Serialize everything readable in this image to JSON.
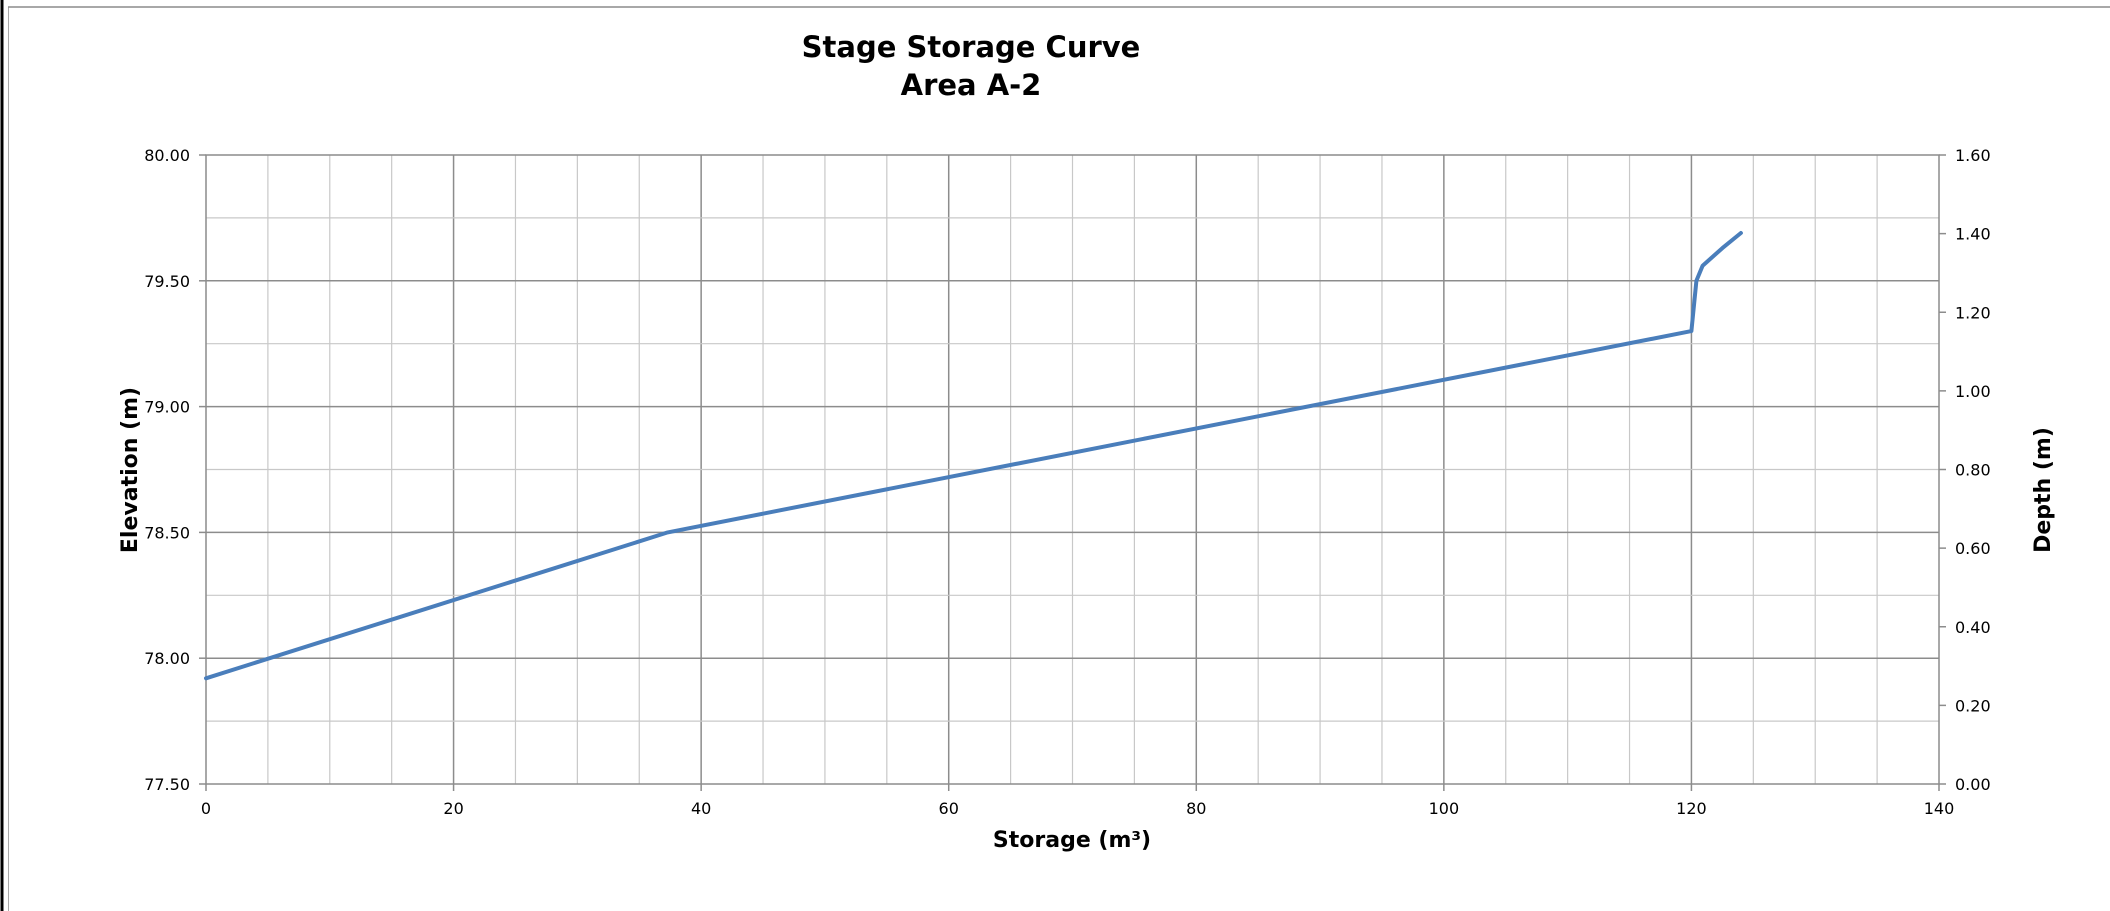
{
  "chart_data": {
    "type": "line",
    "title": "Stage Storage Curve",
    "subtitle": "Area A-2",
    "xlabel": "Storage (m³)",
    "ylabel": "Elevation (m)",
    "y2label": "Depth (m)",
    "xlim": [
      0,
      140
    ],
    "ylim": [
      77.5,
      80.0
    ],
    "y2lim": [
      0.0,
      1.6
    ],
    "x_ticks": [
      "0",
      "20",
      "40",
      "60",
      "80",
      "100",
      "120",
      "140"
    ],
    "y_ticks": [
      "77.50",
      "78.00",
      "78.50",
      "79.00",
      "79.50",
      "80.00"
    ],
    "y2_ticks": [
      "0.00",
      "0.20",
      "0.40",
      "0.60",
      "0.80",
      "1.00",
      "1.20",
      "1.40",
      "1.60"
    ],
    "grid": true,
    "series": [
      {
        "color": "#4a7ebb",
        "points": [
          [
            0,
            77.92
          ],
          [
            37.3,
            78.5
          ],
          [
            120.0,
            79.3
          ],
          [
            120.4,
            79.5
          ],
          [
            120.9,
            79.56
          ],
          [
            122.5,
            79.63
          ],
          [
            124.0,
            79.69
          ]
        ]
      }
    ]
  }
}
